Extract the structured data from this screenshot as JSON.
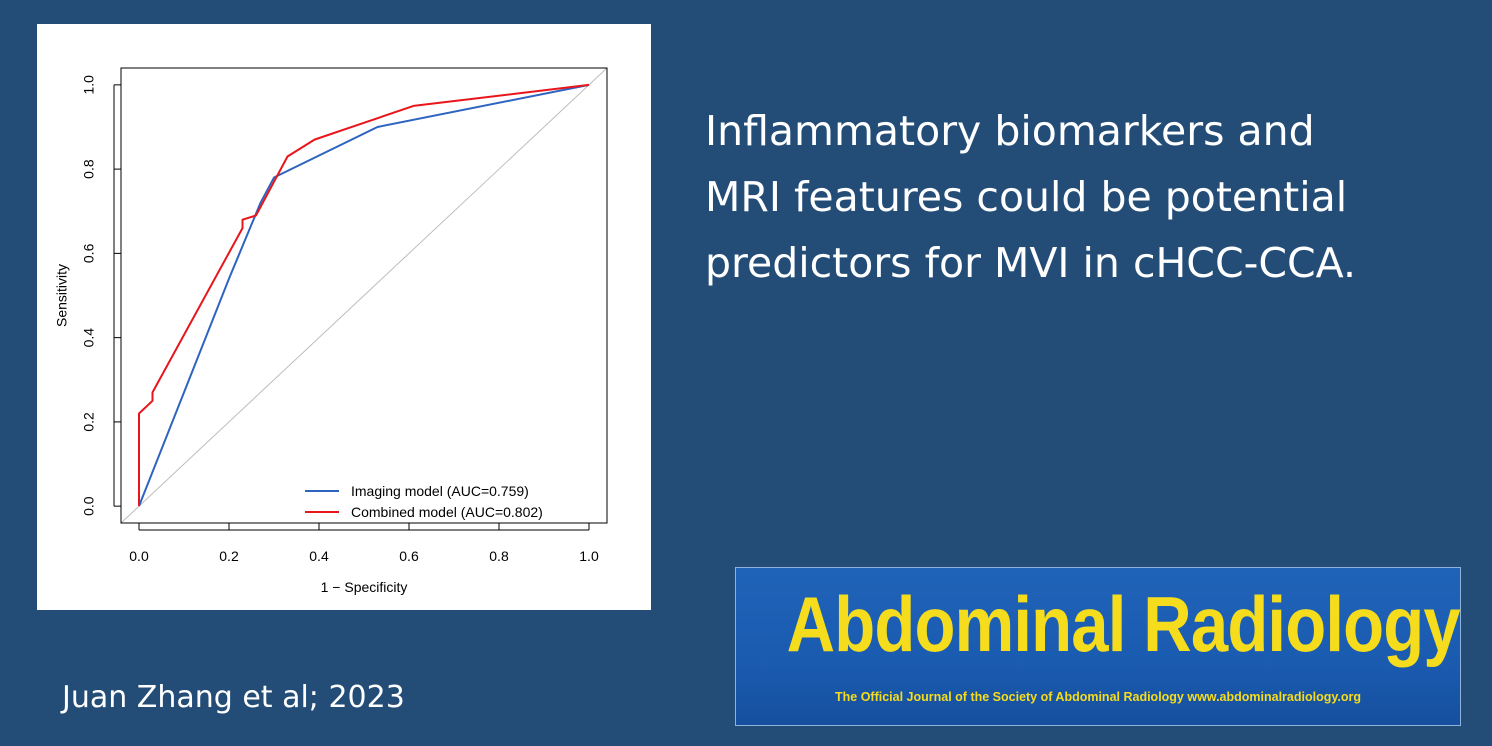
{
  "headline": {
    "lines": [
      "Inflammatory biomarkers and",
      "MRI features could be potential",
      "predictors for MVI in cHCC-CCA."
    ]
  },
  "citation": "Juan Zhang et al; 2023",
  "journal": {
    "name": "Abdominal Radiology",
    "tagline": "The Official Journal of the Society of Abdominal Radiology www.abdominalradiology.org"
  },
  "colors": {
    "background": "#234d77",
    "imaging_series": "#2e64c0",
    "combined_series": "#e8151b",
    "reference_line": "#bdbdbd",
    "logo_text": "#f5dc1c"
  },
  "chart_data": {
    "type": "line",
    "title": "",
    "xlabel": "1 − Specificity",
    "ylabel": "Sensitivity",
    "xlim": [
      -0.04,
      1.04
    ],
    "ylim": [
      -0.04,
      1.04
    ],
    "xticks": [
      "0.0",
      "0.2",
      "0.4",
      "0.6",
      "0.8",
      "1.0"
    ],
    "yticks": [
      "0.0",
      "0.2",
      "0.4",
      "0.6",
      "0.8",
      "1.0"
    ],
    "grid": false,
    "legend_position": "bottom-right",
    "reference_line": [
      [
        -0.04,
        -0.04
      ],
      [
        1.04,
        1.04
      ]
    ],
    "series": [
      {
        "name": "Imaging model (AUC=0.759)",
        "x": [
          0.0,
          0.2,
          0.27,
          0.3,
          0.53,
          1.0
        ],
        "y": [
          0.0,
          0.54,
          0.72,
          0.78,
          0.9,
          1.0
        ]
      },
      {
        "name": "Combined model (AUC=0.802)",
        "x": [
          0.0,
          0.0,
          0.03,
          0.03,
          0.23,
          0.23,
          0.26,
          0.33,
          0.39,
          0.5,
          0.61,
          1.0
        ],
        "y": [
          0.0,
          0.22,
          0.25,
          0.27,
          0.66,
          0.68,
          0.69,
          0.83,
          0.87,
          0.91,
          0.95,
          1.0
        ]
      }
    ]
  }
}
